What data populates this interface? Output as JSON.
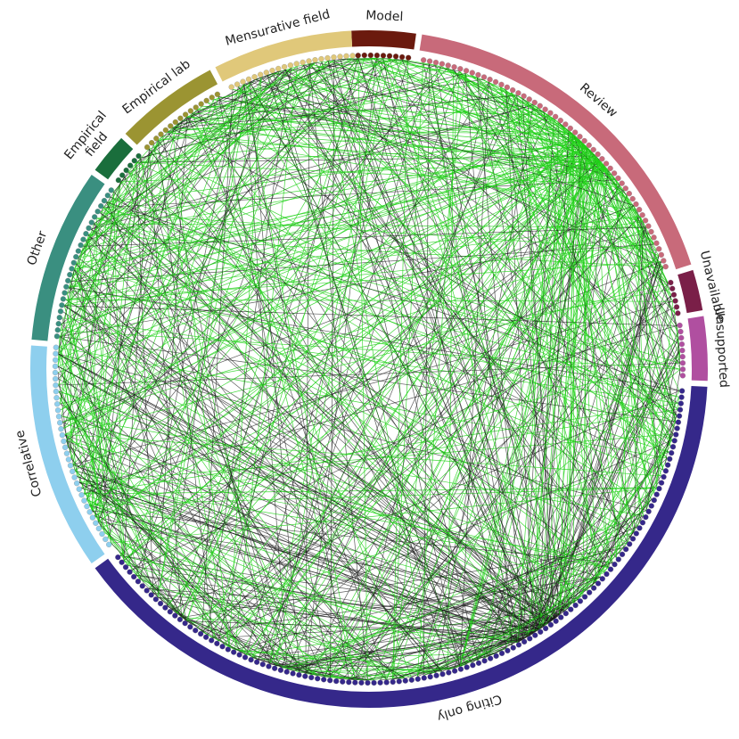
{
  "segments": [
    {
      "lines": [
        "Model"
      ]
    },
    {
      "lines": [
        "Review"
      ]
    },
    {
      "lines": [
        "Unavailable"
      ]
    },
    {
      "lines": [
        "Unsupported"
      ]
    },
    {
      "lines": [
        "Citing only"
      ]
    },
    {
      "lines": [
        "Correlative"
      ]
    },
    {
      "lines": [
        "Other"
      ]
    },
    {
      "lines": [
        "Empirical",
        "field"
      ]
    },
    {
      "lines": [
        "Empirical lab"
      ]
    },
    {
      "lines": [
        "Mensurative field"
      ]
    }
  ]
}
